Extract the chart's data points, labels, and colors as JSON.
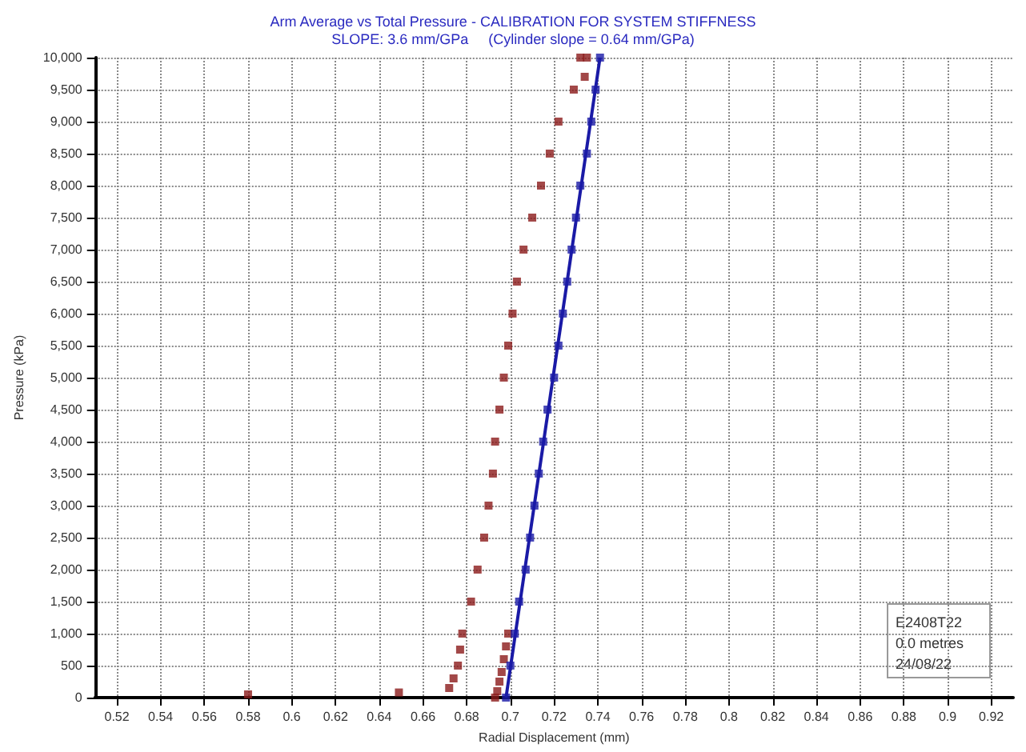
{
  "chart_data": {
    "type": "scatter",
    "title": "Arm Average vs Total Pressure - CALIBRATION FOR SYSTEM STIFFNESS",
    "subtitle": "SLOPE: 3.6 mm/GPa     (Cylinder slope = 0.64 mm/GPa)",
    "xlabel": "Radial Displacement (mm)",
    "ylabel": "Pressure (kPa)",
    "annotations": [
      "E2408T22",
      "0.0 metres",
      "24/08/22"
    ],
    "xlim": [
      0.51,
      0.93
    ],
    "xticks": [
      0.52,
      0.54,
      0.56,
      0.58,
      0.6,
      0.62,
      0.64,
      0.66,
      0.68,
      0.7,
      0.72,
      0.74,
      0.76,
      0.78,
      0.8,
      0.82,
      0.84,
      0.86,
      0.88,
      0.9,
      0.92
    ],
    "ylim": [
      0,
      10000
    ],
    "yticks": [
      0,
      {
        "value": 500,
        "label": "500"
      },
      {
        "value": 1000,
        "label": "1,000"
      },
      {
        "value": 1500,
        "label": "1,500"
      },
      {
        "value": 2000,
        "label": "2,000"
      },
      {
        "value": 2500,
        "label": "2,500"
      },
      {
        "value": 3000,
        "label": "3,000"
      },
      {
        "value": 3500,
        "label": "3,500"
      },
      {
        "value": 4000,
        "label": "4,000"
      },
      {
        "value": 4500,
        "label": "4,500"
      },
      {
        "value": 5000,
        "label": "5,000"
      },
      {
        "value": 5500,
        "label": "5,500"
      },
      {
        "value": 6000,
        "label": "6,000"
      },
      {
        "value": 6500,
        "label": "6,500"
      },
      {
        "value": 7000,
        "label": "7,000"
      },
      {
        "value": 7500,
        "label": "7,500"
      },
      {
        "value": 8000,
        "label": "8,000"
      },
      {
        "value": 8500,
        "label": "8,500"
      },
      {
        "value": 9000,
        "label": "9,000"
      },
      {
        "value": 9500,
        "label": "9,500"
      },
      {
        "value": 10000,
        "label": "10,000"
      }
    ],
    "grid": true,
    "marker": "square",
    "series": [
      {
        "color": "#8b1a1a",
        "x": [
          0.58,
          0.649,
          0.672,
          0.674,
          0.676,
          0.677,
          0.678,
          0.682,
          0.685,
          0.688,
          0.69,
          0.692,
          0.693,
          0.695,
          0.697,
          0.699,
          0.701,
          0.703,
          0.706,
          0.71,
          0.714,
          0.718,
          0.722,
          0.729,
          0.732,
          0.693,
          0.694,
          0.695,
          0.696,
          0.697,
          0.698,
          0.699,
          0.734,
          0.735
        ],
        "values": [
          50,
          80,
          150,
          300,
          500,
          750,
          1000,
          1500,
          2000,
          2500,
          3000,
          3500,
          4000,
          4500,
          5000,
          5500,
          6000,
          6500,
          7000,
          7500,
          8000,
          8500,
          9000,
          9500,
          10000,
          0,
          100,
          250,
          400,
          600,
          800,
          1000,
          9700,
          10000
        ]
      },
      {
        "type": "line",
        "color": "#1a1aa6",
        "marker": "none",
        "x": [
          0.698,
          0.741
        ],
        "values": [
          0,
          10000
        ]
      },
      {
        "color": "#1a1aa6",
        "x": [
          0.698,
          0.7,
          0.702,
          0.704,
          0.707,
          0.709,
          0.711,
          0.713,
          0.715,
          0.717,
          0.72,
          0.722,
          0.724,
          0.726,
          0.728,
          0.73,
          0.732,
          0.735,
          0.737,
          0.739,
          0.741
        ],
        "values": [
          0,
          500,
          1000,
          1500,
          2000,
          2500,
          3000,
          3500,
          4000,
          4500,
          5000,
          5500,
          6000,
          6500,
          7000,
          7500,
          8000,
          8500,
          9000,
          9500,
          10000
        ]
      }
    ]
  }
}
